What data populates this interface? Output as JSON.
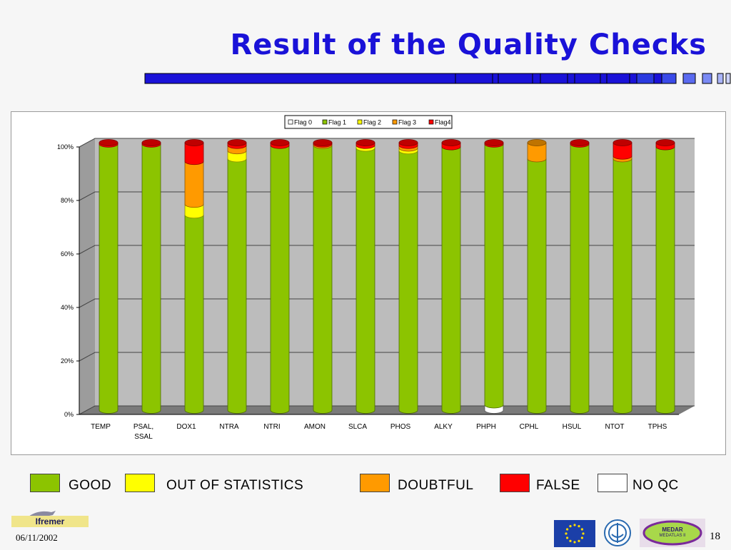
{
  "slide": {
    "title": "Result of the Quality Checks",
    "date": "06/11/2002",
    "page_number": "18"
  },
  "logos": {
    "ifremer": "Ifremer",
    "medar_line1": "MEDAR",
    "medar_line2": "MEDATLAS II"
  },
  "colors": {
    "title": "#1a12d8",
    "flag0": "#ffffff",
    "flag1": "#8cc400",
    "flag2": "#ffff00",
    "flag3": "#ff9a00",
    "flag4": "#ff0000"
  },
  "legend_bottom": [
    {
      "label": "GOOD",
      "color": "#8cc400"
    },
    {
      "label": "OUT OF STATISTICS",
      "color": "#ffff00"
    },
    {
      "label": "DOUBTFUL",
      "color": "#ff9a00"
    },
    {
      "label": "FALSE",
      "color": "#ff0000"
    },
    {
      "label": "NO QC",
      "color": "#ffffff"
    }
  ],
  "chart_data": {
    "type": "bar",
    "stacked": true,
    "percent": true,
    "title": "",
    "xlabel": "",
    "ylabel": "",
    "ylim": [
      0,
      100
    ],
    "yticks": [
      "0%",
      "20%",
      "40%",
      "60%",
      "80%",
      "100%"
    ],
    "grid": true,
    "legend_position": "top-center",
    "categories": [
      "TEMP",
      "PSAL, SSAL",
      "DOX1",
      "NTRA",
      "NTRI",
      "AMON",
      "SLCA",
      "PHOS",
      "ALKY",
      "PHPH",
      "CPHL",
      "HSUL",
      "NTOT",
      "TPHS"
    ],
    "series": [
      {
        "name": "Flag 0",
        "color": "#ffffff",
        "values": [
          0,
          0,
          0,
          0,
          0,
          0,
          0,
          0,
          0,
          2,
          0,
          0,
          0,
          0
        ]
      },
      {
        "name": "Flag 1",
        "color": "#8cc400",
        "values": [
          99.5,
          99.5,
          73,
          94,
          99,
          99,
          98,
          97,
          98.5,
          97.5,
          94,
          99.5,
          94,
          98.5
        ]
      },
      {
        "name": "Flag 2",
        "color": "#ffff00",
        "values": [
          0,
          0,
          4,
          3,
          0,
          0,
          1,
          1,
          0,
          0,
          0,
          0,
          0,
          0
        ]
      },
      {
        "name": "Flag 3",
        "color": "#ff9a00",
        "values": [
          0,
          0,
          16,
          2,
          0,
          0.5,
          0,
          1,
          0,
          0,
          6,
          0,
          1,
          0
        ]
      },
      {
        "name": "Flag4",
        "color": "#ff0000",
        "values": [
          0.5,
          0.5,
          7,
          1,
          1,
          0.5,
          1,
          1,
          1.5,
          0.5,
          0,
          0.5,
          5,
          1.5
        ]
      }
    ]
  }
}
